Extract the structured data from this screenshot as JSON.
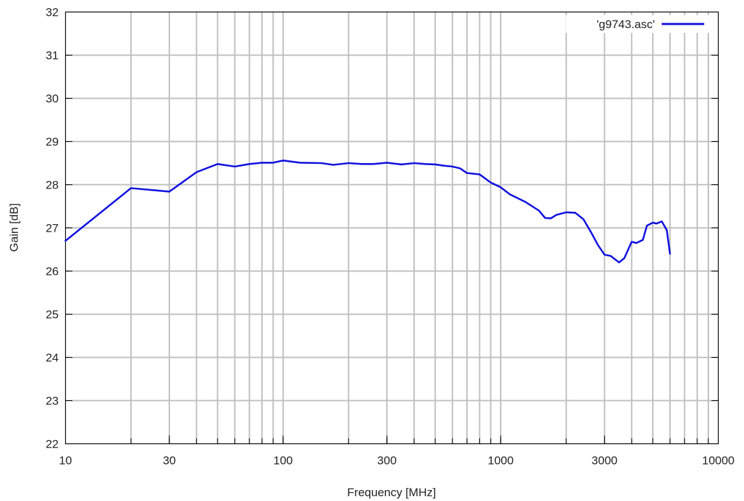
{
  "chart_data": {
    "type": "line",
    "xlabel": "Frequency [MHz]",
    "ylabel": "Gain [dB]",
    "x_scale": "log",
    "xlim": [
      10,
      10000
    ],
    "ylim": [
      22,
      32
    ],
    "x_ticks": [
      10,
      30,
      100,
      300,
      1000,
      3000,
      10000
    ],
    "x_tick_labels": [
      "10",
      "30",
      "100",
      "300",
      "1000",
      "3000",
      "10000"
    ],
    "y_ticks": [
      22,
      23,
      24,
      25,
      26,
      27,
      28,
      29,
      30,
      31,
      32
    ],
    "y_tick_labels": [
      "22",
      "23",
      "24",
      "25",
      "26",
      "27",
      "28",
      "29",
      "30",
      "31",
      "32"
    ],
    "grid": true,
    "legend_position": "top-right",
    "series": [
      {
        "name": "'g9743.asc'",
        "color": "#1010e0",
        "x": [
          10,
          20,
          30,
          40,
          50,
          60,
          70,
          80,
          90,
          100,
          120,
          150,
          170,
          200,
          230,
          260,
          300,
          350,
          400,
          450,
          500,
          550,
          600,
          650,
          700,
          800,
          900,
          1000,
          1100,
          1300,
          1500,
          1600,
          1700,
          1800,
          2000,
          2200,
          2400,
          2600,
          2800,
          3000,
          3200,
          3500,
          3700,
          4000,
          4200,
          4500,
          4700,
          5000,
          5200,
          5500,
          5800,
          6000
        ],
        "y": [
          26.7,
          27.92,
          27.84,
          28.29,
          28.48,
          28.42,
          28.48,
          28.51,
          28.51,
          28.56,
          28.51,
          28.5,
          28.46,
          28.5,
          28.48,
          28.48,
          28.51,
          28.47,
          28.5,
          28.48,
          28.47,
          28.44,
          28.42,
          28.38,
          28.27,
          28.24,
          28.05,
          27.94,
          27.78,
          27.6,
          27.4,
          27.23,
          27.22,
          27.3,
          27.36,
          27.35,
          27.2,
          26.9,
          26.6,
          26.38,
          26.35,
          26.2,
          26.3,
          26.68,
          26.65,
          26.72,
          27.05,
          27.12,
          27.1,
          27.15,
          26.95,
          26.4
        ]
      }
    ]
  }
}
